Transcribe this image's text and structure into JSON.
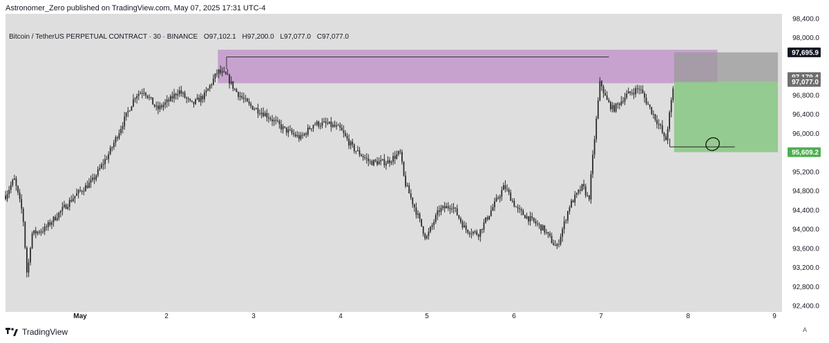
{
  "header": {
    "publisher_line": "Astronomer_Zero published on TradingView.com, May 07, 2025 17:31 UTC-4"
  },
  "legend": {
    "symbol": "Bitcoin / TetherUS PERPETUAL CONTRACT · 30 · BINANCE",
    "open_label": "O",
    "open": "97,102.1",
    "high_label": "H",
    "high": "97,200.0",
    "low_label": "L",
    "low": "97,077.0",
    "close_label": "C",
    "close": "97,077.0"
  },
  "footer": {
    "brand": "TradingView",
    "auto_label": "A"
  },
  "colors": {
    "background": "#dedede",
    "candle": "#2a2a2a",
    "supply_zone": "#c49bcc",
    "target_zone": "#8fc98b",
    "stop_zone": "#9a9a9a",
    "price_tag_dark": "#131722",
    "price_tag_grey": "#6e6e6e",
    "price_tag_green": "#4caf50"
  },
  "chart_data": {
    "type": "candlestick",
    "title": "Bitcoin / TetherUS PERPETUAL CONTRACT · 30 · BINANCE",
    "xlabel": "",
    "ylabel": "",
    "x_ticks": [
      "May",
      "2",
      "3",
      "4",
      "5",
      "6",
      "7",
      "8",
      "9"
    ],
    "y_ticks": [
      "98,400.0",
      "98,000.0",
      "96,800.0",
      "96,400.0",
      "96,000.0",
      "95,200.0",
      "94,800.0",
      "94,400.0",
      "94,000.0",
      "93,600.0",
      "93,200.0",
      "92,800.0",
      "92,400.0"
    ],
    "ylim": [
      92400,
      98400
    ],
    "grid": false,
    "price_series": [
      [
        0.0,
        94700
      ],
      [
        0.1,
        95050
      ],
      [
        0.2,
        94300
      ],
      [
        0.25,
        93000
      ],
      [
        0.3,
        93900
      ],
      [
        0.45,
        94000
      ],
      [
        0.6,
        94300
      ],
      [
        0.8,
        94700
      ],
      [
        1.0,
        95000
      ],
      [
        1.2,
        95600
      ],
      [
        1.35,
        96200
      ],
      [
        1.5,
        96800
      ],
      [
        1.6,
        96900
      ],
      [
        1.75,
        96500
      ],
      [
        1.9,
        96700
      ],
      [
        2.0,
        96900
      ],
      [
        2.15,
        96600
      ],
      [
        2.3,
        96800
      ],
      [
        2.45,
        97300
      ],
      [
        2.55,
        97200
      ],
      [
        2.65,
        96900
      ],
      [
        2.8,
        96600
      ],
      [
        3.0,
        96400
      ],
      [
        3.2,
        96100
      ],
      [
        3.4,
        95900
      ],
      [
        3.55,
        96200
      ],
      [
        3.7,
        96200
      ],
      [
        3.85,
        96100
      ],
      [
        4.0,
        95700
      ],
      [
        4.2,
        95400
      ],
      [
        4.4,
        95400
      ],
      [
        4.55,
        95600
      ],
      [
        4.6,
        95000
      ],
      [
        4.75,
        94300
      ],
      [
        4.85,
        93800
      ],
      [
        5.0,
        94400
      ],
      [
        5.15,
        94500
      ],
      [
        5.3,
        94000
      ],
      [
        5.45,
        93900
      ],
      [
        5.6,
        94400
      ],
      [
        5.75,
        94900
      ],
      [
        5.9,
        94400
      ],
      [
        6.05,
        94200
      ],
      [
        6.2,
        94000
      ],
      [
        6.35,
        93600
      ],
      [
        6.5,
        94500
      ],
      [
        6.65,
        94900
      ],
      [
        6.72,
        94600
      ],
      [
        6.78,
        95800
      ],
      [
        6.85,
        97100
      ],
      [
        6.92,
        96700
      ],
      [
        7.0,
        96500
      ],
      [
        7.15,
        96800
      ],
      [
        7.3,
        96950
      ],
      [
        7.4,
        96600
      ],
      [
        7.55,
        96100
      ],
      [
        7.6,
        95800
      ],
      [
        7.7,
        97077
      ]
    ],
    "annotations": {
      "supply_zone": {
        "x_start": 2.45,
        "x_end": 8.2,
        "y_low": 97050,
        "y_high": 97750
      },
      "resistance_line": {
        "x_start": 2.55,
        "x_end": 6.95,
        "y": 97600
      },
      "stop_zone": {
        "x_start": 7.7,
        "x_end": 8.9,
        "y_low": 97077,
        "y_high": 97695.9
      },
      "target_zone": {
        "x_start": 7.7,
        "x_end": 8.9,
        "y_low": 95609.2,
        "y_high": 97077
      },
      "support_line": {
        "x_start": 7.65,
        "x_end": 8.4,
        "y": 95720
      }
    },
    "price_tags": [
      {
        "label": "97,695.9",
        "value": 97695.9,
        "style": "dark"
      },
      {
        "label": "97,179.4",
        "value": 97179.4,
        "style": "grey"
      },
      {
        "label": "97,077.0",
        "value": 97077.0,
        "style": "grey"
      },
      {
        "label": "95,609.2",
        "value": 95609.2,
        "style": "green"
      }
    ]
  }
}
